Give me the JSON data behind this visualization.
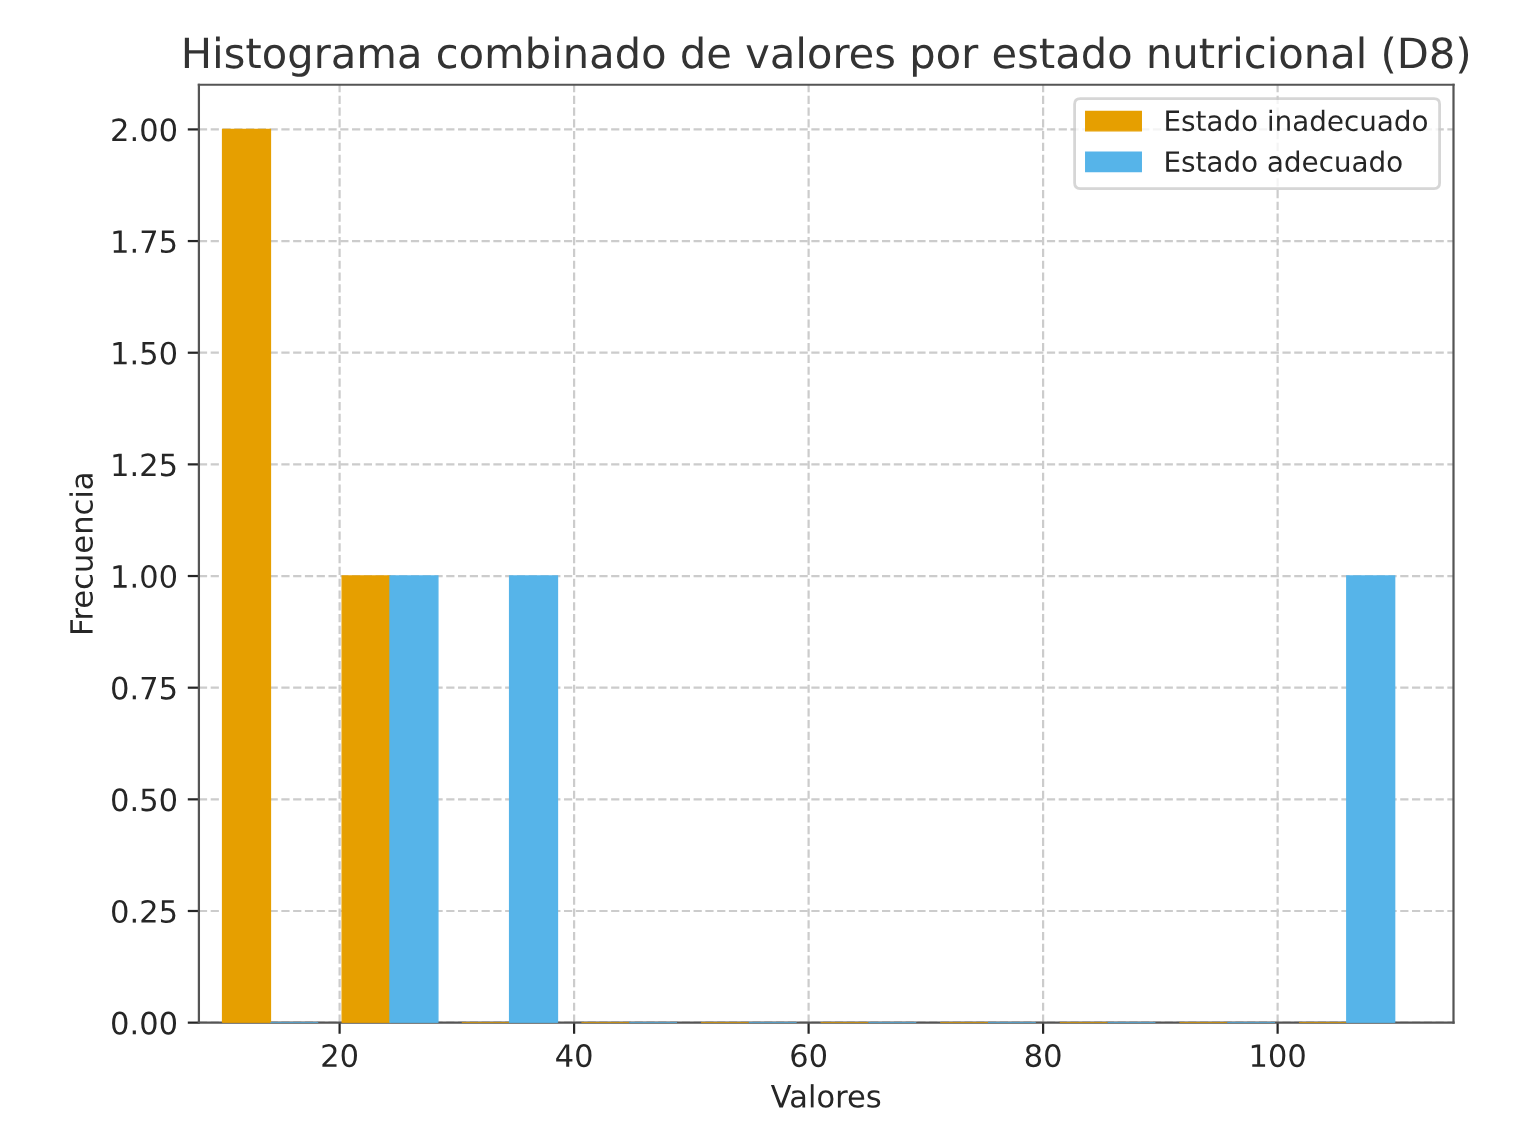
{
  "chart_data": {
    "type": "histogram",
    "title": "Histograma combinado de valores por estado nutricional (D8)",
    "xlabel": "Valores",
    "ylabel": "Frecuencia",
    "bins": [
      9,
      19.2,
      29.4,
      39.6,
      49.8,
      60,
      70.2,
      80.4,
      90.6,
      100.8,
      111
    ],
    "series": [
      {
        "name": "Estado inadecuado",
        "color": "#e69f00",
        "values": [
          2,
          1,
          0,
          0,
          0,
          0,
          0,
          0,
          0,
          0
        ]
      },
      {
        "name": "Estado adecuado",
        "color": "#56b4e9",
        "values": [
          0,
          1,
          1,
          0,
          0,
          0,
          0,
          0,
          0,
          1
        ]
      }
    ],
    "xlim": [
      8,
      115
    ],
    "xticks": [
      20,
      40,
      60,
      80,
      100
    ],
    "ylim": [
      0,
      2.1
    ],
    "yticks": [
      {
        "value": 0,
        "label": "0.00"
      },
      {
        "value": 0.25,
        "label": "0.25"
      },
      {
        "value": 0.5,
        "label": "0.50"
      },
      {
        "value": 0.75,
        "label": "0.75"
      },
      {
        "value": 1,
        "label": "1.00"
      },
      {
        "value": 1.25,
        "label": "1.25"
      },
      {
        "value": 1.5,
        "label": "1.50"
      },
      {
        "value": 1.75,
        "label": "1.75"
      },
      {
        "value": 2,
        "label": "2.00"
      }
    ],
    "grid": true,
    "legend": "top right"
  }
}
